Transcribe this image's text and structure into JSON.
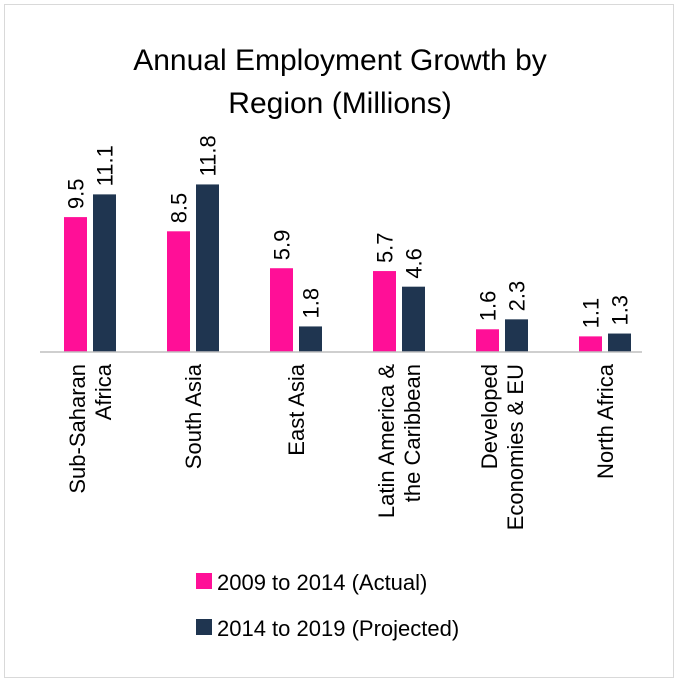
{
  "chart_data": {
    "type": "bar",
    "title_lines": [
      "Annual Employment Growth by",
      "Region (Millions)"
    ],
    "categories": [
      [
        "Sub-Saharan",
        "Africa"
      ],
      [
        "South Asia"
      ],
      [
        "East Asia"
      ],
      [
        "Latin America &",
        "the Caribbean"
      ],
      [
        "Developed",
        "Economies & EU"
      ],
      [
        "North Africa"
      ]
    ],
    "series": [
      {
        "name": "2009 to 2014 (Actual)",
        "color": "#ff0f97",
        "values": [
          9.5,
          8.5,
          5.9,
          5.7,
          1.6,
          1.1
        ],
        "labels": [
          "9.5",
          "8.5",
          "5.9",
          "5.7",
          "1.6",
          "1.1"
        ]
      },
      {
        "name": "2014 to 2019 (Projected)",
        "color": "#1f3550",
        "values": [
          11.1,
          11.8,
          1.8,
          4.6,
          2.3,
          1.3
        ],
        "labels": [
          "11.1",
          "11.8",
          "1.8",
          "4.6",
          "2.3",
          "1.3"
        ]
      }
    ],
    "ylim": [
      0,
      12
    ],
    "grid": false,
    "legend_position": "bottom"
  }
}
